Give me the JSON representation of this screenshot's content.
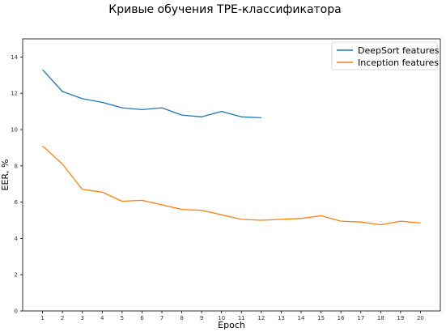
{
  "chart_data": {
    "type": "line",
    "title": "Кривые обучения TPE-классификатора",
    "xlabel": "Epoch",
    "ylabel": "EER, %",
    "xlim": [
      0,
      21
    ],
    "ylim": [
      0,
      15
    ],
    "x_ticks": [
      1,
      2,
      3,
      4,
      5,
      6,
      7,
      8,
      9,
      10,
      11,
      12,
      13,
      14,
      15,
      16,
      17,
      18,
      19,
      20
    ],
    "y_ticks": [
      0,
      2,
      4,
      6,
      8,
      10,
      12,
      14
    ],
    "grid": false,
    "legend_position": "top-right",
    "series": [
      {
        "name": "DeepSort features",
        "color": "#1f77b4",
        "x": [
          1,
          2,
          3,
          4,
          5,
          6,
          7,
          8,
          9,
          10,
          11,
          12
        ],
        "values": [
          13.3,
          12.1,
          11.7,
          11.5,
          11.2,
          11.1,
          11.2,
          10.8,
          10.7,
          11.0,
          10.7,
          10.65
        ]
      },
      {
        "name": "Inception features",
        "color": "#ff7f0e",
        "x": [
          1,
          2,
          3,
          4,
          5,
          6,
          7,
          8,
          9,
          10,
          11,
          12,
          13,
          14,
          15,
          16,
          17,
          18,
          19,
          20
        ],
        "values": [
          9.1,
          8.1,
          6.7,
          6.55,
          6.05,
          6.1,
          5.85,
          5.6,
          5.55,
          5.3,
          5.05,
          5.0,
          5.05,
          5.1,
          5.25,
          4.95,
          4.9,
          4.75,
          4.95,
          4.85
        ]
      }
    ]
  }
}
